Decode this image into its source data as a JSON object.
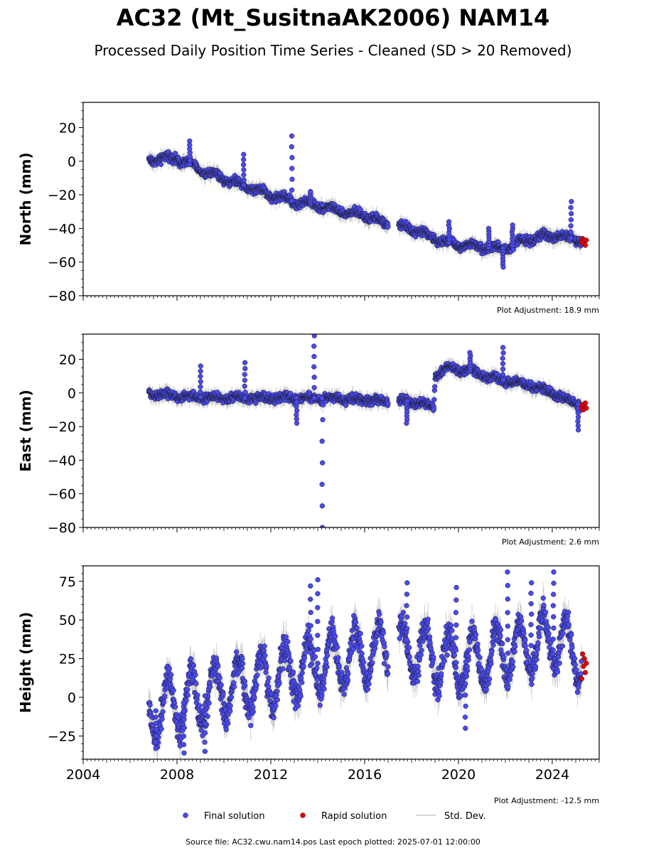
{
  "title": "AC32 (Mt_SusitnaAK2006) NAM14",
  "subtitle": "Processed Daily Position Time Series - Cleaned (SD > 20 Removed)",
  "footer": "Source file: AC32.cwu.nam14.pos  Last epoch plotted: 2025-07-01 12:00:00",
  "legend": {
    "placement": "bottom-center",
    "items": [
      {
        "label": "Final solution",
        "color": "#4a4af2",
        "marker": "circle"
      },
      {
        "label": "Rapid solution",
        "color": "#e60000",
        "marker": "circle"
      },
      {
        "label": "Std. Dev.",
        "color": "#c8c8c8",
        "marker": "line"
      }
    ]
  },
  "colors": {
    "final": "#4a4af2",
    "rapid": "#e60000",
    "stddev": "#b4b4b4",
    "marker_edge": "#1a1a1a"
  },
  "chart_data": [
    {
      "type": "scatter",
      "ylabel": "North (mm)",
      "adjustment_note": "Plot Adjustment: 18.9 mm",
      "xlim": [
        2004.0,
        2026.0
      ],
      "ylim": [
        -80,
        35
      ],
      "yticks": [
        20,
        0,
        -20,
        -40,
        -60,
        -80
      ],
      "ytick_labels": [
        "20",
        "0",
        "−20",
        "−40",
        "−60",
        "−80"
      ],
      "xticks": [
        2004,
        2008,
        2012,
        2016,
        2020,
        2024
      ],
      "xtick_labels": [
        "",
        "",
        "",
        "",
        "",
        ""
      ],
      "show_xtick_labels": false,
      "grid": false,
      "data_start": 2006.8,
      "data_end": 2025.45,
      "rapid_start": 2025.25,
      "gaps": [
        [
          2017.0,
          2017.45
        ]
      ],
      "trend": [
        [
          2006.8,
          1
        ],
        [
          2008.0,
          2
        ],
        [
          2009.0,
          -5
        ],
        [
          2010.0,
          -10
        ],
        [
          2011.0,
          -15
        ],
        [
          2012.0,
          -20
        ],
        [
          2013.0,
          -24
        ],
        [
          2014.0,
          -26
        ],
        [
          2015.0,
          -30
        ],
        [
          2016.0,
          -32
        ],
        [
          2017.0,
          -38
        ],
        [
          2018.0,
          -40
        ],
        [
          2019.0,
          -46
        ],
        [
          2020.0,
          -50
        ],
        [
          2021.0,
          -51
        ],
        [
          2022.0,
          -52
        ],
        [
          2023.0,
          -46
        ],
        [
          2024.0,
          -44
        ],
        [
          2025.45,
          -47
        ]
      ],
      "rapid_values": [
        -48,
        -46,
        -49,
        -47,
        -50,
        -47
      ],
      "noise_amp": 2.5,
      "season_amp": 1.5,
      "sigma_range": [
        2,
        5
      ],
      "spikes": [
        [
          2008.55,
          12
        ],
        [
          2010.85,
          4
        ],
        [
          2012.9,
          15
        ],
        [
          2013.7,
          -18
        ],
        [
          2014.2,
          -26
        ],
        [
          2019.6,
          -36
        ],
        [
          2021.3,
          -40
        ],
        [
          2021.9,
          -63
        ],
        [
          2022.3,
          -38
        ],
        [
          2024.8,
          -24
        ]
      ]
    },
    {
      "type": "scatter",
      "ylabel": "East (mm)",
      "adjustment_note": "Plot Adjustment: 2.6 mm",
      "xlim": [
        2004.0,
        2026.0
      ],
      "ylim": [
        -80,
        35
      ],
      "yticks": [
        20,
        0,
        -20,
        -40,
        -60,
        -80
      ],
      "ytick_labels": [
        "20",
        "0",
        "−20",
        "−40",
        "−60",
        "−80"
      ],
      "xticks": [
        2004,
        2008,
        2012,
        2016,
        2020,
        2024
      ],
      "xtick_labels": [
        "",
        "",
        "",
        "",
        "",
        ""
      ],
      "show_xtick_labels": false,
      "grid": false,
      "data_start": 2006.8,
      "data_end": 2025.45,
      "rapid_start": 2025.25,
      "gaps": [
        [
          2017.0,
          2017.45
        ]
      ],
      "trend": [
        [
          2006.8,
          0
        ],
        [
          2008.0,
          -2
        ],
        [
          2010.0,
          -3
        ],
        [
          2012.0,
          -3
        ],
        [
          2014.0,
          -3
        ],
        [
          2016.0,
          -4
        ],
        [
          2017.0,
          -5
        ],
        [
          2018.0,
          -5
        ],
        [
          2018.95,
          -8
        ],
        [
          2019.0,
          10
        ],
        [
          2019.6,
          15
        ],
        [
          2020.5,
          13
        ],
        [
          2021.5,
          9
        ],
        [
          2022.5,
          6
        ],
        [
          2023.5,
          3
        ],
        [
          2024.5,
          -3
        ],
        [
          2025.45,
          -9
        ]
      ],
      "rapid_values": [
        -9,
        -7,
        -10,
        -8,
        -6,
        -9
      ],
      "noise_amp": 2.5,
      "season_amp": 1.0,
      "sigma_range": [
        2,
        5
      ],
      "spikes": [
        [
          2009.0,
          16
        ],
        [
          2010.9,
          18
        ],
        [
          2013.1,
          -18
        ],
        [
          2013.85,
          34
        ],
        [
          2014.2,
          -80
        ],
        [
          2017.8,
          -18
        ],
        [
          2020.5,
          24
        ],
        [
          2021.9,
          27
        ],
        [
          2025.1,
          -22
        ]
      ]
    },
    {
      "type": "scatter",
      "ylabel": "Height (mm)",
      "adjustment_note": "Plot Adjustment: -12.5 mm",
      "xlim": [
        2004.0,
        2026.0
      ],
      "ylim": [
        -40,
        85
      ],
      "yticks": [
        75,
        50,
        25,
        0,
        -25
      ],
      "ytick_labels": [
        "75",
        "50",
        "25",
        "0",
        "−25"
      ],
      "xticks": [
        2004,
        2008,
        2012,
        2016,
        2020,
        2024
      ],
      "xtick_labels": [
        "2004",
        "2008",
        "2012",
        "2016",
        "2020",
        "2024"
      ],
      "show_xtick_labels": true,
      "grid": false,
      "data_start": 2006.8,
      "data_end": 2025.45,
      "rapid_start": 2025.25,
      "gaps": [
        [
          2017.0,
          2017.45
        ]
      ],
      "trend": [
        [
          2006.8,
          -10
        ],
        [
          2008.0,
          -5
        ],
        [
          2010.0,
          5
        ],
        [
          2012.0,
          12
        ],
        [
          2014.0,
          22
        ],
        [
          2016.0,
          28
        ],
        [
          2018.0,
          30
        ],
        [
          2020.0,
          22
        ],
        [
          2022.0,
          28
        ],
        [
          2024.0,
          38
        ],
        [
          2025.45,
          25
        ]
      ],
      "rapid_values": [
        12,
        28,
        20,
        25,
        16,
        22
      ],
      "noise_amp": 9,
      "season_amp": 18,
      "sigma_range": [
        4,
        12
      ],
      "spikes": [
        [
          2007.1,
          -33
        ],
        [
          2008.3,
          -36
        ],
        [
          2009.2,
          -35
        ],
        [
          2013.7,
          72
        ],
        [
          2014.0,
          76
        ],
        [
          2017.8,
          74
        ],
        [
          2019.9,
          71
        ],
        [
          2022.1,
          81
        ],
        [
          2023.1,
          74
        ],
        [
          2024.05,
          81
        ],
        [
          2020.3,
          -20
        ]
      ]
    }
  ]
}
